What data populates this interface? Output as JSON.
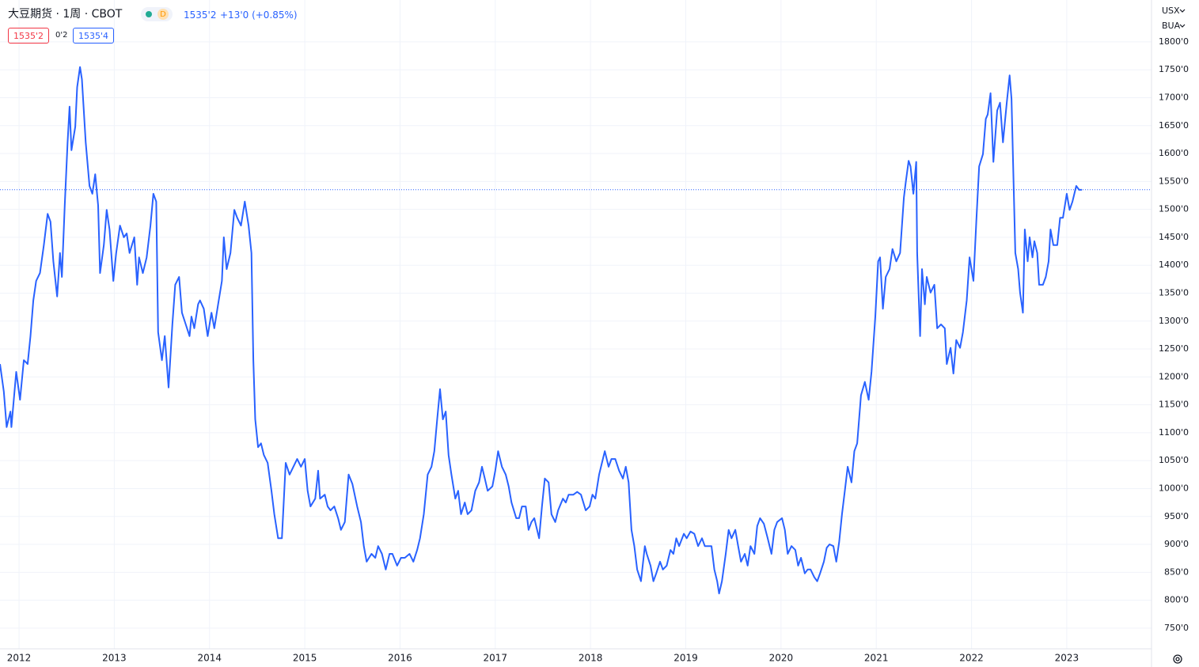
{
  "header": {
    "title": "大豆期货 · 1周 · CBOT",
    "badge": "D",
    "price": "1535'2",
    "change": "+13'0 (+0.85%)",
    "bid": "1535'2",
    "spread": "0'2",
    "ask": "1535'4",
    "currency": "USX",
    "unit": "BUA"
  },
  "chart_data": {
    "type": "line",
    "color": "#2962ff",
    "grid": true,
    "price_line": 1535.25,
    "xlim": [
      2011.8,
      2023.89
    ],
    "xticks": [
      2012,
      2013,
      2014,
      2015,
      2016,
      2017,
      2018,
      2019,
      2020,
      2021,
      2022,
      2023
    ],
    "ylim": [
      713,
      1875
    ],
    "yticks": [
      {
        "value": 750,
        "label": "750'0"
      },
      {
        "value": 800,
        "label": "800'0"
      },
      {
        "value": 850,
        "label": "850'0"
      },
      {
        "value": 900,
        "label": "900'0"
      },
      {
        "value": 950,
        "label": "950'0"
      },
      {
        "value": 1000,
        "label": "1000'0"
      },
      {
        "value": 1050,
        "label": "1050'0"
      },
      {
        "value": 1100,
        "label": "1100'0"
      },
      {
        "value": 1150,
        "label": "1150'0"
      },
      {
        "value": 1200,
        "label": "1200'0"
      },
      {
        "value": 1250,
        "label": "1250'0"
      },
      {
        "value": 1300,
        "label": "1300'0"
      },
      {
        "value": 1350,
        "label": "1350'0"
      },
      {
        "value": 1400,
        "label": "1400'0"
      },
      {
        "value": 1450,
        "label": "1450'0"
      },
      {
        "value": 1500,
        "label": "1500'0"
      },
      {
        "value": 1550,
        "label": "1550'0"
      },
      {
        "value": 1600,
        "label": "1600'0"
      },
      {
        "value": 1650,
        "label": "1650'0"
      },
      {
        "value": 1700,
        "label": "1700'0"
      },
      {
        "value": 1750,
        "label": "1750'0"
      },
      {
        "value": 1800,
        "label": "1800'0"
      }
    ],
    "x": [
      2011.8,
      2011.84,
      2011.87,
      2011.91,
      2011.92,
      2011.97,
      2012.01,
      2012.05,
      2012.09,
      2012.12,
      2012.15,
      2012.18,
      2012.22,
      2012.26,
      2012.3,
      2012.33,
      2012.36,
      2012.4,
      2012.43,
      2012.45,
      2012.48,
      2012.51,
      2012.53,
      2012.55,
      2012.59,
      2012.61,
      2012.64,
      2012.66,
      2012.7,
      2012.74,
      2012.77,
      2012.8,
      2012.83,
      2012.85,
      2012.89,
      2012.92,
      2012.95,
      2012.99,
      2013.02,
      2013.06,
      2013.1,
      2013.13,
      2013.16,
      2013.21,
      2013.24,
      2013.26,
      2013.3,
      2013.34,
      2013.38,
      2013.41,
      2013.44,
      2013.46,
      2013.5,
      2013.53,
      2013.57,
      2013.61,
      2013.64,
      2013.68,
      2013.71,
      2013.75,
      2013.79,
      2013.81,
      2013.84,
      2013.88,
      2013.9,
      2013.94,
      2013.98,
      2014.02,
      2014.05,
      2014.09,
      2014.13,
      2014.15,
      2014.18,
      2014.22,
      2014.26,
      2014.29,
      2014.33,
      2014.37,
      2014.41,
      2014.44,
      2014.46,
      2014.48,
      2014.51,
      2014.54,
      2014.57,
      2014.61,
      2014.65,
      2014.68,
      2014.72,
      2014.76,
      2014.8,
      2014.84,
      2014.88,
      2014.92,
      2014.96,
      2015.0,
      2015.03,
      2015.06,
      2015.11,
      2015.14,
      2015.16,
      2015.21,
      2015.24,
      2015.27,
      2015.31,
      2015.35,
      2015.38,
      2015.42,
      2015.46,
      2015.5,
      2015.55,
      2015.59,
      2015.62,
      2015.65,
      2015.7,
      2015.74,
      2015.77,
      2015.81,
      2015.85,
      2015.89,
      2015.92,
      2015.97,
      2016.01,
      2016.05,
      2016.1,
      2016.14,
      2016.18,
      2016.21,
      2016.25,
      2016.29,
      2016.33,
      2016.36,
      2016.39,
      2016.42,
      2016.45,
      2016.48,
      2016.51,
      2016.54,
      2016.58,
      2016.61,
      2016.64,
      2016.68,
      2016.71,
      2016.75,
      2016.79,
      2016.83,
      2016.86,
      2016.89,
      2016.92,
      2016.97,
      2017.0,
      2017.03,
      2017.07,
      2017.11,
      2017.14,
      2017.17,
      2017.22,
      2017.25,
      2017.28,
      2017.32,
      2017.35,
      2017.38,
      2017.41,
      2017.46,
      2017.49,
      2017.52,
      2017.56,
      2017.59,
      2017.63,
      2017.66,
      2017.71,
      2017.74,
      2017.77,
      2017.82,
      2017.86,
      2017.9,
      2017.95,
      2017.99,
      2018.02,
      2018.05,
      2018.09,
      2018.12,
      2018.15,
      2018.19,
      2018.22,
      2018.26,
      2018.3,
      2018.34,
      2018.37,
      2018.4,
      2018.43,
      2018.46,
      2018.49,
      2018.53,
      2018.57,
      2018.59,
      2018.63,
      2018.66,
      2018.69,
      2018.73,
      2018.76,
      2018.8,
      2018.84,
      2018.87,
      2018.9,
      2018.93,
      2018.98,
      2019.01,
      2019.05,
      2019.09,
      2019.13,
      2019.17,
      2019.2,
      2019.23,
      2019.27,
      2019.3,
      2019.33,
      2019.35,
      2019.38,
      2019.42,
      2019.45,
      2019.48,
      2019.52,
      2019.55,
      2019.58,
      2019.62,
      2019.65,
      2019.68,
      2019.72,
      2019.75,
      2019.78,
      2019.82,
      2019.86,
      2019.9,
      2019.93,
      2019.96,
      2020.01,
      2020.04,
      2020.07,
      2020.11,
      2020.15,
      2020.18,
      2020.21,
      2020.25,
      2020.28,
      2020.31,
      2020.35,
      2020.38,
      2020.41,
      2020.45,
      2020.48,
      2020.51,
      2020.55,
      2020.58,
      2020.61,
      2020.64,
      2020.67,
      2020.7,
      2020.74,
      2020.77,
      2020.8,
      2020.84,
      2020.88,
      2020.92,
      2020.95,
      2020.99,
      2021.02,
      2021.04,
      2021.07,
      2021.1,
      2021.14,
      2021.17,
      2021.21,
      2021.25,
      2021.29,
      2021.31,
      2021.34,
      2021.36,
      2021.39,
      2021.42,
      2021.43,
      2021.46,
      2021.48,
      2021.51,
      2021.53,
      2021.57,
      2021.61,
      2021.64,
      2021.68,
      2021.72,
      2021.74,
      2021.78,
      2021.81,
      2021.84,
      2021.88,
      2021.91,
      2021.95,
      2021.98,
      2022.02,
      2022.05,
      2022.08,
      2022.12,
      2022.15,
      2022.17,
      2022.2,
      2022.23,
      2022.27,
      2022.3,
      2022.33,
      2022.37,
      2022.4,
      2022.42,
      2022.46,
      2022.49,
      2022.51,
      2022.54,
      2022.56,
      2022.59,
      2022.61,
      2022.64,
      2022.66,
      2022.69,
      2022.71,
      2022.75,
      2022.78,
      2022.81,
      2022.83,
      2022.86,
      2022.9,
      2022.93,
      2022.96,
      2023.0,
      2023.03,
      2023.06,
      2023.1,
      2023.13,
      2023.16
    ],
    "values": [
      1223,
      1174,
      1110,
      1138,
      1110,
      1209,
      1159,
      1230,
      1223,
      1273,
      1337,
      1372,
      1386,
      1436,
      1492,
      1478,
      1407,
      1344,
      1422,
      1379,
      1507,
      1620,
      1684,
      1606,
      1648,
      1719,
      1755,
      1733,
      1620,
      1542,
      1528,
      1563,
      1507,
      1386,
      1436,
      1499,
      1464,
      1372,
      1422,
      1471,
      1450,
      1457,
      1422,
      1450,
      1365,
      1414,
      1386,
      1414,
      1471,
      1528,
      1514,
      1280,
      1230,
      1273,
      1181,
      1294,
      1365,
      1379,
      1315,
      1294,
      1273,
      1308,
      1287,
      1330,
      1337,
      1322,
      1273,
      1315,
      1287,
      1330,
      1372,
      1450,
      1393,
      1422,
      1499,
      1485,
      1471,
      1514,
      1471,
      1422,
      1230,
      1124,
      1074,
      1081,
      1060,
      1046,
      996,
      954,
      911,
      911,
      1046,
      1025,
      1039,
      1053,
      1039,
      1053,
      996,
      968,
      982,
      1032,
      982,
      989,
      968,
      961,
      968,
      947,
      926,
      940,
      1025,
      1008,
      968,
      940,
      897,
      869,
      883,
      876,
      897,
      883,
      855,
      883,
      883,
      862,
      876,
      876,
      883,
      869,
      890,
      911,
      954,
      1025,
      1039,
      1067,
      1124,
      1178,
      1124,
      1138,
      1060,
      1025,
      982,
      996,
      954,
      975,
      954,
      961,
      996,
      1011,
      1039,
      1018,
      996,
      1004,
      1032,
      1067,
      1039,
      1025,
      1004,
      975,
      947,
      947,
      968,
      968,
      926,
      940,
      947,
      911,
      968,
      1018,
      1011,
      954,
      940,
      961,
      982,
      975,
      989,
      989,
      994,
      989,
      961,
      968,
      989,
      982,
      1025,
      1046,
      1067,
      1039,
      1053,
      1053,
      1032,
      1018,
      1039,
      1011,
      926,
      897,
      855,
      834,
      897,
      883,
      862,
      834,
      848,
      869,
      855,
      862,
      890,
      883,
      911,
      897,
      919,
      911,
      923,
      919,
      897,
      911,
      897,
      897,
      897,
      855,
      834,
      812,
      834,
      883,
      926,
      911,
      926,
      897,
      869,
      883,
      862,
      897,
      883,
      933,
      947,
      937,
      911,
      883,
      926,
      940,
      947,
      926,
      883,
      897,
      890,
      862,
      876,
      848,
      855,
      855,
      841,
      834,
      848,
      869,
      894,
      900,
      897,
      869,
      904,
      954,
      996,
      1039,
      1011,
      1067,
      1081,
      1167,
      1191,
      1159,
      1209,
      1308,
      1407,
      1414,
      1322,
      1379,
      1393,
      1429,
      1407,
      1422,
      1521,
      1549,
      1587,
      1577,
      1528,
      1585,
      1422,
      1273,
      1393,
      1330,
      1379,
      1351,
      1365,
      1287,
      1294,
      1287,
      1223,
      1252,
      1206,
      1266,
      1252,
      1280,
      1337,
      1414,
      1372,
      1478,
      1577,
      1599,
      1662,
      1670,
      1708,
      1585,
      1677,
      1691,
      1620,
      1691,
      1740,
      1698,
      1422,
      1393,
      1351,
      1315,
      1464,
      1407,
      1450,
      1414,
      1443,
      1422,
      1365,
      1365,
      1379,
      1407,
      1464,
      1436,
      1436,
      1485,
      1485,
      1528,
      1499,
      1514,
      1542,
      1535,
      1535
    ]
  }
}
